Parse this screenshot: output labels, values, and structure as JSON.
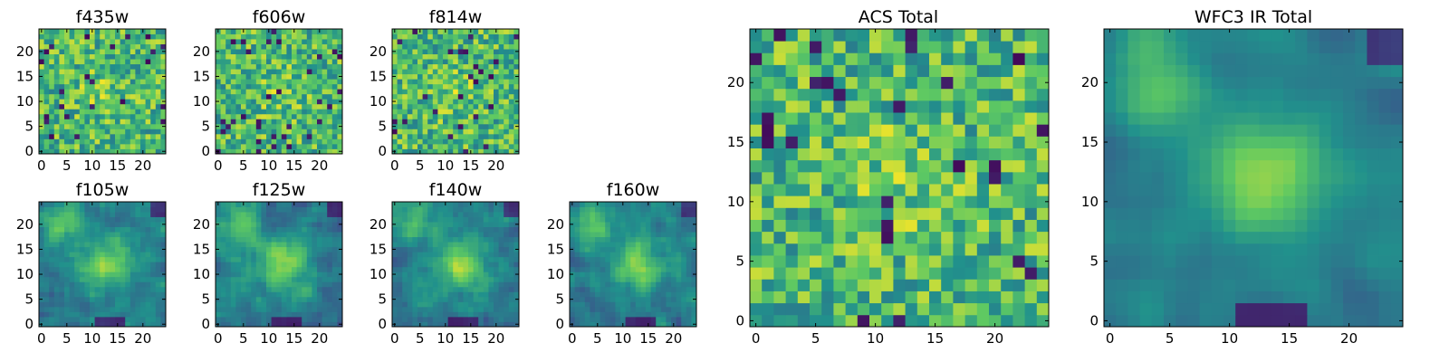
{
  "colormap": [
    "#440154",
    "#3b528b",
    "#21918c",
    "#5ec962",
    "#fde725"
  ],
  "chart_data": [
    {
      "type": "heatmap",
      "title": "f435w",
      "grid": false,
      "size": [
        25,
        25
      ],
      "xticks": [
        0,
        5,
        10,
        15,
        20
      ],
      "yticks": [
        0,
        5,
        10,
        15,
        20
      ],
      "xlim": [
        -0.5,
        24.5
      ],
      "ylim": [
        -0.5,
        24.5
      ],
      "pattern": "noise",
      "seed": 11
    },
    {
      "type": "heatmap",
      "title": "f606w",
      "grid": false,
      "size": [
        25,
        25
      ],
      "xticks": [
        0,
        5,
        10,
        15,
        20
      ],
      "yticks": [
        0,
        5,
        10,
        15,
        20
      ],
      "xlim": [
        -0.5,
        24.5
      ],
      "ylim": [
        -0.5,
        24.5
      ],
      "pattern": "noise",
      "seed": 23
    },
    {
      "type": "heatmap",
      "title": "f814w",
      "grid": false,
      "size": [
        25,
        25
      ],
      "xticks": [
        0,
        5,
        10,
        15,
        20
      ],
      "yticks": [
        0,
        5,
        10,
        15,
        20
      ],
      "xlim": [
        -0.5,
        24.5
      ],
      "ylim": [
        -0.5,
        24.5
      ],
      "pattern": "noise",
      "seed": 37
    },
    {
      "type": "heatmap",
      "title": "f105w",
      "grid": false,
      "size": [
        25,
        25
      ],
      "xticks": [
        0,
        5,
        10,
        15,
        20
      ],
      "yticks": [
        0,
        5,
        10,
        15,
        20
      ],
      "xlim": [
        -0.5,
        24.5
      ],
      "ylim": [
        -0.5,
        24.5
      ],
      "pattern": "source",
      "seed": 41
    },
    {
      "type": "heatmap",
      "title": "f125w",
      "grid": false,
      "size": [
        25,
        25
      ],
      "xticks": [
        0,
        5,
        10,
        15,
        20
      ],
      "yticks": [
        0,
        5,
        10,
        15,
        20
      ],
      "xlim": [
        -0.5,
        24.5
      ],
      "ylim": [
        -0.5,
        24.5
      ],
      "pattern": "source",
      "seed": 53
    },
    {
      "type": "heatmap",
      "title": "f140w",
      "grid": false,
      "size": [
        25,
        25
      ],
      "xticks": [
        0,
        5,
        10,
        15,
        20
      ],
      "yticks": [
        0,
        5,
        10,
        15,
        20
      ],
      "xlim": [
        -0.5,
        24.5
      ],
      "ylim": [
        -0.5,
        24.5
      ],
      "pattern": "source",
      "seed": 67
    },
    {
      "type": "heatmap",
      "title": "f160w",
      "grid": false,
      "size": [
        25,
        25
      ],
      "xticks": [
        0,
        5,
        10,
        15,
        20
      ],
      "yticks": [
        0,
        5,
        10,
        15,
        20
      ],
      "xlim": [
        -0.5,
        24.5
      ],
      "ylim": [
        -0.5,
        24.5
      ],
      "pattern": "source",
      "seed": 79
    },
    {
      "type": "heatmap",
      "title": "ACS Total",
      "grid": false,
      "size": [
        25,
        25
      ],
      "xticks": [
        0,
        5,
        10,
        15,
        20
      ],
      "yticks": [
        0,
        5,
        10,
        15,
        20
      ],
      "xlim": [
        -0.5,
        24.5
      ],
      "ylim": [
        -0.5,
        24.5
      ],
      "pattern": "noise",
      "seed": 97
    },
    {
      "type": "heatmap",
      "title": "WFC3 IR Total",
      "grid": false,
      "size": [
        25,
        25
      ],
      "xticks": [
        0,
        5,
        10,
        15,
        20
      ],
      "yticks": [
        0,
        5,
        10,
        15,
        20
      ],
      "xlim": [
        -0.5,
        24.5
      ],
      "ylim": [
        -0.5,
        24.5
      ],
      "pattern": "smooth",
      "seed": 113
    }
  ]
}
